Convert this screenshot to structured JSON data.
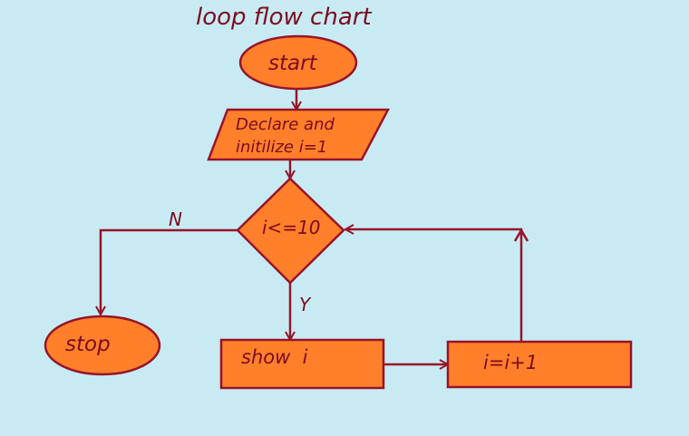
{
  "title": "loop flow chart",
  "nodes": {
    "start": "start",
    "declare_line1": "Declare and",
    "declare_line2": "initilize i=1",
    "condition": "i<=10",
    "show": "show  i",
    "increment": "i=i+1",
    "stop": "stop"
  },
  "edge_labels": {
    "no": "N",
    "yes": "Y"
  },
  "colors": {
    "background": "#c8ebf3",
    "shape_fill": "#ff7f2a",
    "stroke": "#96142a",
    "text": "#7a0d20"
  }
}
